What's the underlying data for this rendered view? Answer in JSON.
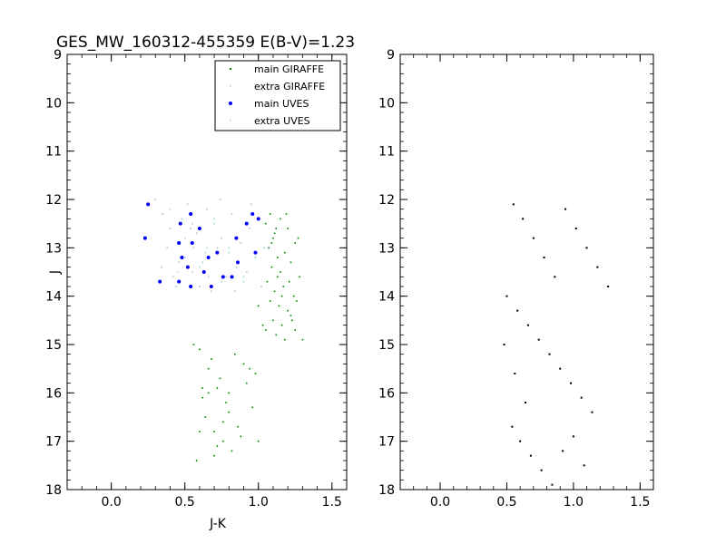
{
  "chart_data": [
    {
      "type": "scatter",
      "title": "GES_MW_160312-455359 E(B-V)=1.23",
      "xlabel": "J-K",
      "ylabel": "J",
      "xlim": [
        -0.3,
        1.6
      ],
      "ylim": [
        18,
        9
      ],
      "y_inverted": true,
      "x_ticks": [
        "0.0",
        "0.5",
        "1.0",
        "1.5"
      ],
      "y_ticks": [
        "9",
        "10",
        "11",
        "12",
        "13",
        "14",
        "15",
        "16",
        "17",
        "18"
      ],
      "grid": false,
      "legend_placement": "top-right",
      "series": [
        {
          "name": "main GIRAFFE",
          "color": "#008000",
          "marker": "small-dot",
          "points": [
            [
              1.05,
              12.5
            ],
            [
              1.08,
              12.3
            ],
            [
              1.12,
              12.6
            ],
            [
              1.15,
              12.4
            ],
            [
              1.1,
              12.8
            ],
            [
              1.2,
              12.6
            ],
            [
              1.25,
              12.9
            ],
            [
              1.07,
              13.0
            ],
            [
              1.13,
              13.2
            ],
            [
              1.18,
              13.1
            ],
            [
              1.09,
              13.4
            ],
            [
              1.15,
              13.5
            ],
            [
              1.22,
              13.3
            ],
            [
              1.28,
              13.6
            ],
            [
              1.06,
              13.7
            ],
            [
              1.11,
              13.9
            ],
            [
              1.17,
              13.8
            ],
            [
              1.24,
              14.0
            ],
            [
              1.08,
              14.1
            ],
            [
              1.14,
              14.2
            ],
            [
              1.2,
              14.3
            ],
            [
              1.26,
              14.1
            ],
            [
              1.1,
              14.5
            ],
            [
              1.16,
              14.6
            ],
            [
              1.22,
              14.4
            ],
            [
              1.05,
              14.7
            ],
            [
              1.12,
              14.8
            ],
            [
              1.18,
              14.9
            ],
            [
              1.25,
              14.7
            ],
            [
              1.3,
              14.9
            ],
            [
              1.0,
              14.2
            ],
            [
              1.03,
              14.6
            ],
            [
              1.19,
              12.3
            ],
            [
              1.27,
              12.8
            ],
            [
              1.21,
              13.7
            ],
            [
              1.13,
              13.6
            ],
            [
              1.09,
              12.9
            ],
            [
              1.23,
              14.5
            ],
            [
              1.16,
              14.0
            ],
            [
              1.11,
              12.7
            ],
            [
              0.6,
              15.1
            ],
            [
              0.66,
              15.5
            ],
            [
              0.72,
              15.9
            ],
            [
              0.78,
              16.2
            ],
            [
              0.64,
              16.5
            ],
            [
              0.7,
              16.8
            ],
            [
              0.76,
              17.0
            ],
            [
              0.82,
              17.2
            ],
            [
              0.58,
              17.4
            ],
            [
              0.62,
              16.1
            ],
            [
              0.68,
              15.3
            ],
            [
              0.74,
              15.7
            ],
            [
              0.8,
              16.4
            ],
            [
              0.86,
              16.7
            ],
            [
              0.92,
              15.8
            ],
            [
              0.96,
              16.3
            ],
            [
              1.0,
              17.0
            ],
            [
              0.9,
              15.4
            ],
            [
              0.84,
              15.2
            ],
            [
              0.7,
              17.3
            ],
            [
              0.66,
              16.0
            ],
            [
              0.88,
              16.9
            ],
            [
              0.94,
              15.5
            ],
            [
              0.76,
              16.6
            ],
            [
              0.62,
              15.9
            ],
            [
              0.56,
              15.0
            ],
            [
              0.72,
              17.1
            ],
            [
              0.98,
              15.6
            ],
            [
              0.8,
              16.0
            ],
            [
              0.6,
              16.8
            ]
          ]
        },
        {
          "name": "extra GIRAFFE",
          "color": "#9ccadb",
          "marker": "small-dot",
          "points": [
            [
              0.3,
              12.0
            ],
            [
              0.35,
              12.3
            ],
            [
              0.4,
              12.6
            ],
            [
              0.45,
              12.9
            ],
            [
              0.5,
              13.2
            ],
            [
              0.55,
              13.5
            ],
            [
              0.6,
              13.8
            ],
            [
              0.65,
              12.2
            ],
            [
              0.7,
              12.5
            ],
            [
              0.75,
              12.8
            ],
            [
              0.8,
              13.1
            ],
            [
              0.85,
              13.4
            ],
            [
              0.9,
              13.7
            ],
            [
              0.95,
              12.1
            ],
            [
              1.0,
              12.4
            ],
            [
              0.38,
              13.0
            ],
            [
              0.42,
              13.6
            ],
            [
              0.48,
              12.4
            ],
            [
              0.52,
              12.1
            ],
            [
              0.58,
              12.7
            ],
            [
              0.62,
              13.3
            ],
            [
              0.68,
              13.9
            ],
            [
              0.72,
              13.0
            ],
            [
              0.78,
              13.6
            ],
            [
              0.82,
              12.3
            ],
            [
              0.88,
              12.9
            ],
            [
              0.92,
              13.5
            ],
            [
              0.98,
              13.2
            ],
            [
              1.02,
              13.8
            ],
            [
              0.34,
              13.4
            ],
            [
              0.44,
              13.8
            ],
            [
              0.54,
              12.6
            ],
            [
              0.64,
              13.1
            ],
            [
              0.74,
              12.0
            ],
            [
              0.84,
              13.9
            ],
            [
              0.94,
              12.6
            ],
            [
              1.04,
              13.0
            ],
            [
              0.46,
              13.3
            ],
            [
              0.56,
              13.0
            ],
            [
              0.66,
              13.6
            ]
          ]
        },
        {
          "name": "main UVES",
          "color": "#0000ff",
          "marker": "dot",
          "points": [
            [
              0.25,
              12.1
            ],
            [
              0.23,
              12.8
            ],
            [
              0.47,
              12.5
            ],
            [
              0.54,
              12.3
            ],
            [
              0.6,
              12.6
            ],
            [
              0.46,
              12.9
            ],
            [
              0.48,
              13.2
            ],
            [
              0.52,
              13.4
            ],
            [
              0.46,
              13.7
            ],
            [
              0.54,
              13.8
            ],
            [
              0.55,
              12.9
            ],
            [
              0.63,
              13.5
            ],
            [
              0.66,
              13.2
            ],
            [
              0.72,
              13.1
            ],
            [
              0.76,
              13.6
            ],
            [
              0.82,
              13.6
            ],
            [
              0.85,
              12.8
            ],
            [
              0.92,
              12.5
            ],
            [
              0.96,
              12.3
            ],
            [
              1.0,
              12.4
            ],
            [
              0.98,
              13.1
            ],
            [
              0.86,
              13.3
            ],
            [
              0.68,
              13.8
            ],
            [
              0.33,
              13.7
            ]
          ]
        },
        {
          "name": "extra UVES",
          "color": "#b0d0de",
          "marker": "small-dot",
          "points": [
            [
              0.4,
              12.2
            ],
            [
              0.5,
              12.8
            ],
            [
              0.6,
              13.4
            ],
            [
              0.7,
              12.4
            ],
            [
              0.8,
              13.0
            ],
            [
              0.9,
              13.6
            ],
            [
              0.45,
              13.5
            ],
            [
              0.55,
              12.5
            ],
            [
              0.65,
              13.0
            ],
            [
              0.75,
              13.7
            ]
          ]
        }
      ]
    },
    {
      "type": "scatter",
      "title": "",
      "xlabel": "",
      "ylabel": "",
      "xlim": [
        -0.3,
        1.6
      ],
      "ylim": [
        18,
        9
      ],
      "y_inverted": true,
      "x_ticks": [
        "0.0",
        "0.5",
        "1.0",
        "1.5"
      ],
      "y_ticks": [
        "9",
        "10",
        "11",
        "12",
        "13",
        "14",
        "15",
        "16",
        "17",
        "18"
      ],
      "grid": false,
      "series": [
        {
          "color": "#000000",
          "marker": "pixel",
          "points": [
            [
              0.55,
              12.1
            ],
            [
              0.62,
              12.4
            ],
            [
              0.7,
              12.8
            ],
            [
              0.78,
              13.2
            ],
            [
              0.86,
              13.6
            ],
            [
              0.94,
              12.2
            ],
            [
              1.02,
              12.6
            ],
            [
              1.1,
              13.0
            ],
            [
              1.18,
              13.4
            ],
            [
              1.26,
              13.8
            ],
            [
              0.5,
              14.0
            ],
            [
              0.58,
              14.3
            ],
            [
              0.66,
              14.6
            ],
            [
              0.74,
              14.9
            ],
            [
              0.82,
              15.2
            ],
            [
              0.9,
              15.5
            ],
            [
              0.98,
              15.8
            ],
            [
              1.06,
              16.1
            ],
            [
              1.14,
              16.4
            ],
            [
              0.54,
              16.7
            ],
            [
              0.6,
              17.0
            ],
            [
              0.68,
              17.3
            ],
            [
              0.76,
              17.6
            ],
            [
              0.84,
              17.9
            ],
            [
              0.92,
              17.2
            ],
            [
              1.0,
              16.9
            ],
            [
              1.08,
              17.5
            ],
            [
              0.48,
              15.0
            ],
            [
              0.56,
              15.6
            ],
            [
              0.64,
              16.2
            ]
          ]
        }
      ]
    }
  ]
}
